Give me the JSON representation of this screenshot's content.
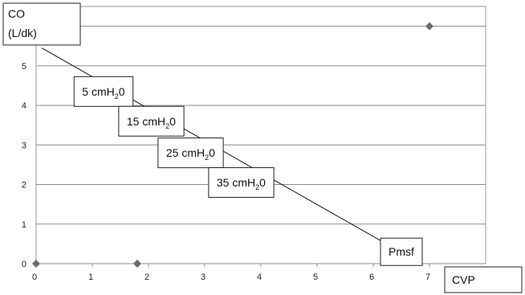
{
  "chart_data": {
    "type": "scatter",
    "ylabel_line1": "CO",
    "ylabel_line2": "(L/dk)",
    "xlabel": "CVP",
    "xlim": [
      0,
      8
    ],
    "ylim": [
      0,
      6.5
    ],
    "x_ticks": [
      "0",
      "1",
      "2",
      "3",
      "4",
      "5",
      "6",
      "7"
    ],
    "y_ticks": [
      "0",
      "1",
      "2",
      "3",
      "4",
      "5",
      "6"
    ],
    "grid": true,
    "line": {
      "x": [
        0.1,
        6.85
      ],
      "y": [
        5.45,
        0
      ]
    },
    "points": [
      {
        "x": 0,
        "y": 0
      },
      {
        "x": 1.8,
        "y": 0
      },
      {
        "x": 7,
        "y": 6
      }
    ],
    "marker_color": "#6b6b6b",
    "annotations": [
      {
        "text": "5 cmH",
        "sub": "2",
        "suffix": "0",
        "anchor_x": 1.2,
        "anchor_y": 4.35
      },
      {
        "text": "15 cmH",
        "sub": "2",
        "suffix": "0",
        "anchor_x": 2.05,
        "anchor_y": 3.6
      },
      {
        "text": "25 cmH",
        "sub": "2",
        "suffix": "0",
        "anchor_x": 2.75,
        "anchor_y": 2.8
      },
      {
        "text": "35 cmH",
        "sub": "2",
        "suffix": "0",
        "anchor_x": 3.65,
        "anchor_y": 2.05
      },
      {
        "text": "Pmsf",
        "sub": "",
        "suffix": "",
        "anchor_x": 6.5,
        "anchor_y": 0.3
      }
    ]
  }
}
